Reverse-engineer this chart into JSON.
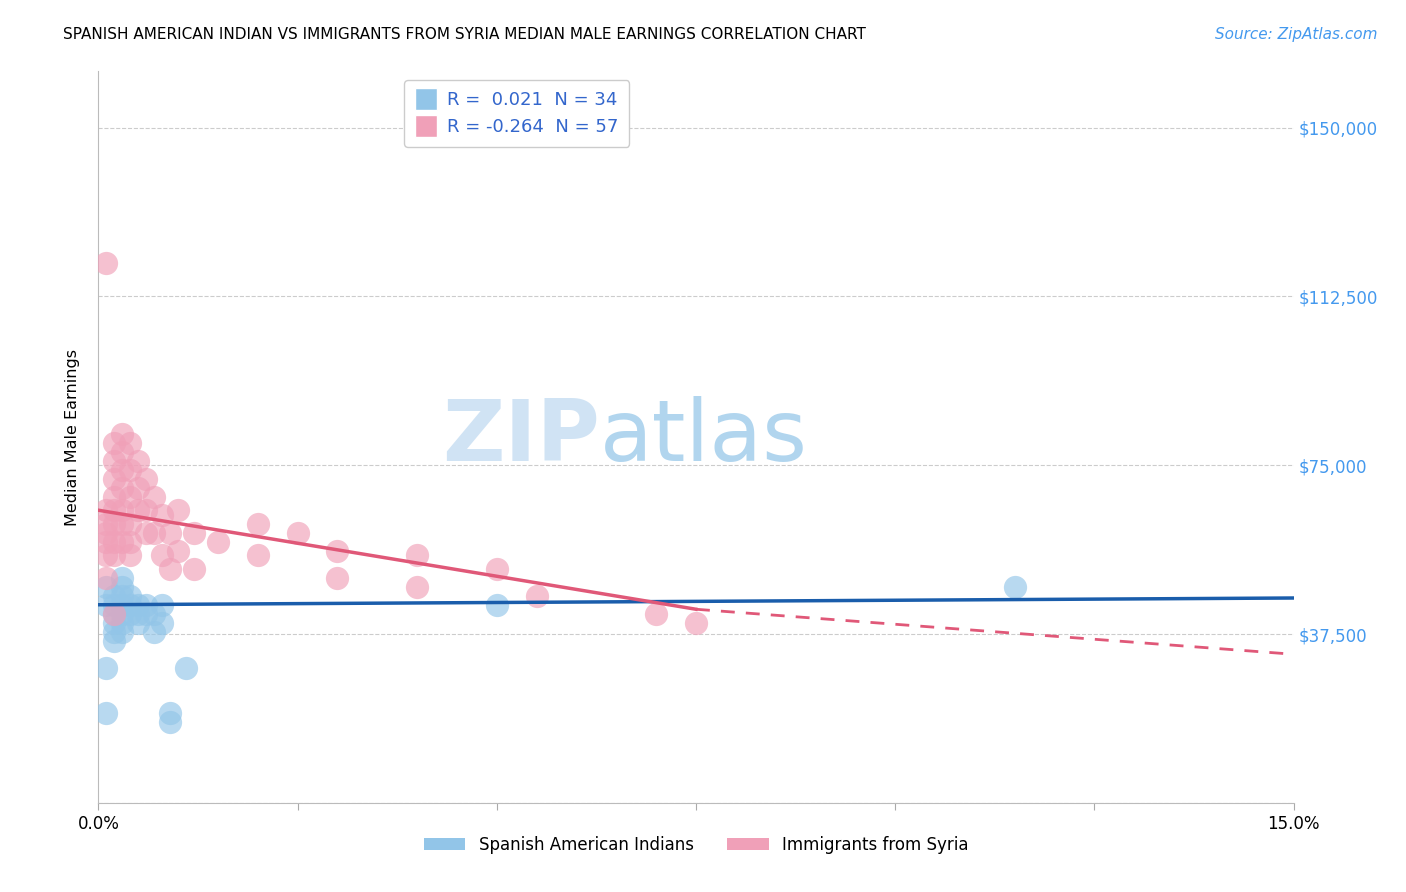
{
  "title": "SPANISH AMERICAN INDIAN VS IMMIGRANTS FROM SYRIA MEDIAN MALE EARNINGS CORRELATION CHART",
  "source": "Source: ZipAtlas.com",
  "ylabel": "Median Male Earnings",
  "yticks": [
    0,
    37500,
    75000,
    112500,
    150000
  ],
  "xlim": [
    0.0,
    0.15
  ],
  "ylim": [
    0,
    162500
  ],
  "legend_label1": "Spanish American Indians",
  "legend_label2": "Immigrants from Syria",
  "r1": 0.021,
  "n1": 34,
  "r2": -0.264,
  "n2": 57,
  "watermark_zip": "ZIP",
  "watermark_atlas": "atlas",
  "blue_color": "#92C5E8",
  "pink_color": "#F0A0B8",
  "blue_line_color": "#1A5DAB",
  "pink_line_color": "#E05878",
  "blue_scatter": [
    [
      0.001,
      48000
    ],
    [
      0.001,
      44000
    ],
    [
      0.001,
      30000
    ],
    [
      0.001,
      20000
    ],
    [
      0.002,
      46000
    ],
    [
      0.002,
      44000
    ],
    [
      0.002,
      42000
    ],
    [
      0.002,
      40000
    ],
    [
      0.002,
      38000
    ],
    [
      0.002,
      36000
    ],
    [
      0.003,
      50000
    ],
    [
      0.003,
      48000
    ],
    [
      0.003,
      46000
    ],
    [
      0.003,
      44000
    ],
    [
      0.003,
      42000
    ],
    [
      0.003,
      40000
    ],
    [
      0.003,
      38000
    ],
    [
      0.004,
      46000
    ],
    [
      0.004,
      44000
    ],
    [
      0.004,
      42000
    ],
    [
      0.005,
      44000
    ],
    [
      0.005,
      42000
    ],
    [
      0.005,
      40000
    ],
    [
      0.006,
      44000
    ],
    [
      0.006,
      42000
    ],
    [
      0.007,
      42000
    ],
    [
      0.007,
      38000
    ],
    [
      0.008,
      44000
    ],
    [
      0.008,
      40000
    ],
    [
      0.009,
      20000
    ],
    [
      0.009,
      18000
    ],
    [
      0.011,
      30000
    ],
    [
      0.05,
      44000
    ],
    [
      0.115,
      48000
    ]
  ],
  "pink_scatter": [
    [
      0.001,
      65000
    ],
    [
      0.001,
      62000
    ],
    [
      0.001,
      60000
    ],
    [
      0.001,
      58000
    ],
    [
      0.001,
      55000
    ],
    [
      0.001,
      50000
    ],
    [
      0.002,
      80000
    ],
    [
      0.002,
      76000
    ],
    [
      0.002,
      72000
    ],
    [
      0.002,
      68000
    ],
    [
      0.002,
      65000
    ],
    [
      0.002,
      62000
    ],
    [
      0.002,
      58000
    ],
    [
      0.002,
      55000
    ],
    [
      0.003,
      82000
    ],
    [
      0.003,
      78000
    ],
    [
      0.003,
      74000
    ],
    [
      0.003,
      70000
    ],
    [
      0.003,
      65000
    ],
    [
      0.003,
      62000
    ],
    [
      0.003,
      58000
    ],
    [
      0.004,
      80000
    ],
    [
      0.004,
      74000
    ],
    [
      0.004,
      68000
    ],
    [
      0.004,
      62000
    ],
    [
      0.004,
      58000
    ],
    [
      0.004,
      55000
    ],
    [
      0.005,
      76000
    ],
    [
      0.005,
      70000
    ],
    [
      0.005,
      65000
    ],
    [
      0.006,
      72000
    ],
    [
      0.006,
      65000
    ],
    [
      0.006,
      60000
    ],
    [
      0.007,
      68000
    ],
    [
      0.007,
      60000
    ],
    [
      0.008,
      64000
    ],
    [
      0.008,
      55000
    ],
    [
      0.009,
      60000
    ],
    [
      0.009,
      52000
    ],
    [
      0.01,
      65000
    ],
    [
      0.01,
      56000
    ],
    [
      0.012,
      60000
    ],
    [
      0.012,
      52000
    ],
    [
      0.015,
      58000
    ],
    [
      0.02,
      62000
    ],
    [
      0.02,
      55000
    ],
    [
      0.025,
      60000
    ],
    [
      0.03,
      56000
    ],
    [
      0.03,
      50000
    ],
    [
      0.04,
      55000
    ],
    [
      0.04,
      48000
    ],
    [
      0.05,
      52000
    ],
    [
      0.055,
      46000
    ],
    [
      0.07,
      42000
    ],
    [
      0.075,
      40000
    ],
    [
      0.001,
      120000
    ],
    [
      0.002,
      42000
    ]
  ]
}
